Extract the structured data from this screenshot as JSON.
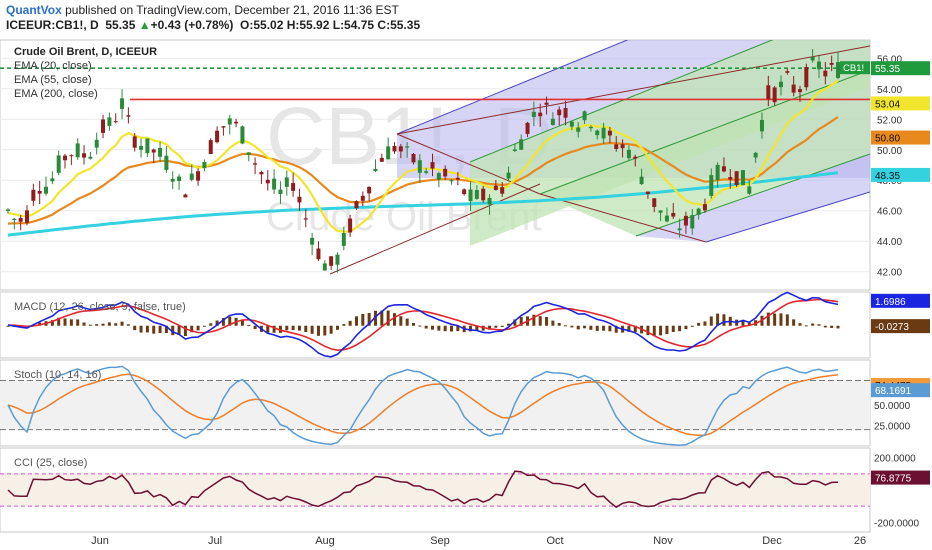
{
  "header": {
    "brand": "QuantVox",
    "published": " published on TradingView.com, December 21, 2016 11:36 EST",
    "symbol": "ICEEUR:CB1!, D",
    "last": "55.35",
    "arrow": "▲",
    "change": "+0.43 (+0.78%)",
    "ohlc": "O:55.02 H:55.92 L:54.75 C:55.35"
  },
  "chart_data": {
    "type": "candlestick",
    "title": "Crude Oil Brent, D, ICEEUR",
    "watermark": [
      "CB1!, D",
      "Crude Oil Brent"
    ],
    "x_ticks": [
      "Jun",
      "Jul",
      "Aug",
      "Sep",
      "Oct",
      "Nov",
      "Dec",
      "26"
    ],
    "ylim": [
      40.8,
      57.2
    ],
    "y_ticks": [
      42,
      44,
      46,
      48,
      50,
      52,
      54,
      56
    ],
    "legend": [
      "EMA (20, close)",
      "EMA (55, close)",
      "EMA (200, close)"
    ],
    "price_labels": [
      {
        "text": "55.35",
        "value": 55.35,
        "color": "#1f9a3c"
      },
      {
        "text": "53.04",
        "value": 53.04,
        "color": "#f2e52e"
      },
      {
        "text": "50.80",
        "value": 50.8,
        "color": "#e8891d"
      },
      {
        "text": "48.35",
        "value": 48.35,
        "color": "#34d2df"
      }
    ],
    "symbol_tag": "CB1!",
    "resistance": 53.3,
    "price_path": [
      [
        0,
        46
      ],
      [
        3,
        45.2
      ],
      [
        6,
        45.8
      ],
      [
        9,
        47.8
      ],
      [
        13,
        47.6
      ],
      [
        17,
        49.4
      ],
      [
        21,
        50
      ],
      [
        25,
        49.5
      ],
      [
        29,
        51.2
      ],
      [
        33,
        51.8
      ],
      [
        36,
        53
      ],
      [
        39,
        51
      ],
      [
        43,
        50.2
      ],
      [
        47,
        49.8
      ],
      [
        51,
        49
      ],
      [
        55,
        47.3
      ],
      [
        59,
        48.2
      ],
      [
        63,
        49.8
      ],
      [
        67,
        51.5
      ],
      [
        71,
        51.8
      ],
      [
        74,
        51
      ],
      [
        78,
        49.2
      ],
      [
        82,
        47.8
      ],
      [
        86,
        47.1
      ],
      [
        90,
        47.9
      ],
      [
        94,
        45.5
      ],
      [
        98,
        43.3
      ],
      [
        101,
        42.1
      ],
      [
        104,
        42.9
      ],
      [
        107,
        44.5
      ],
      [
        111,
        46.6
      ],
      [
        115,
        48.2
      ],
      [
        118,
        49.6
      ],
      [
        122,
        50.2
      ],
      [
        126,
        49.6
      ],
      [
        130,
        49
      ],
      [
        134,
        48.6
      ],
      [
        138,
        48.1
      ],
      [
        142,
        47.7
      ],
      [
        146,
        46.8
      ],
      [
        150,
        46.9
      ],
      [
        154,
        47.2
      ],
      [
        157,
        47.8
      ],
      [
        160,
        49.8
      ],
      [
        164,
        51.6
      ],
      [
        168,
        52.9
      ],
      [
        172,
        52.3
      ],
      [
        176,
        52.6
      ],
      [
        180,
        51.8
      ],
      [
        184,
        52
      ],
      [
        188,
        51
      ],
      [
        192,
        50.4
      ],
      [
        196,
        50
      ],
      [
        200,
        48.3
      ],
      [
        204,
        46.5
      ],
      [
        208,
        45.4
      ],
      [
        212,
        45
      ],
      [
        216,
        45.3
      ],
      [
        220,
        46.6
      ],
      [
        223,
        48.2
      ],
      [
        227,
        48.9
      ],
      [
        231,
        48.2
      ],
      [
        234,
        47.5
      ],
      [
        237,
        51
      ],
      [
        240,
        53.6
      ],
      [
        243,
        53.9
      ],
      [
        246,
        54.5
      ],
      [
        249,
        53.8
      ],
      [
        252,
        54.8
      ],
      [
        255,
        55.7
      ],
      [
        258,
        55.1
      ],
      [
        262,
        55.35
      ]
    ],
    "macd_ylim": [
      -2.2,
      2.3
    ],
    "macd_labels": [
      {
        "text": "1.6986",
        "value": 1.6986,
        "color": "#1a25e0"
      },
      {
        "text": "-0.0273",
        "value": -0.0273,
        "color": "#6a3a12"
      }
    ],
    "macd_title": "MACD (12, 26, close, 9, false, true)",
    "stoch_ylim": [
      0,
      105
    ],
    "stoch_ticks": [
      25,
      50
    ],
    "stoch_tick_text": [
      "25.0000",
      "50.0000"
    ],
    "stoch_levels": [
      20,
      80
    ],
    "stoch_labels": [
      {
        "text": "74.4475",
        "value": 74.4475,
        "color": "#f39a3a"
      },
      {
        "text": "68.1691",
        "value": 68.1691,
        "color": "#5b9bd5"
      }
    ],
    "stoch_title": "Stoch (10, 14, 16)",
    "cci_ylim": [
      -260,
      260
    ],
    "cci_ticks": [
      200,
      -200
    ],
    "cci_tick_text": [
      "200.0000",
      "-200.0000"
    ],
    "cci_levels": [
      100,
      -100
    ],
    "cci_labels": [
      {
        "text": "76.8775",
        "value": 76.8775,
        "color": "#6b1030"
      }
    ],
    "cci_title": "CCI (25, close)"
  }
}
